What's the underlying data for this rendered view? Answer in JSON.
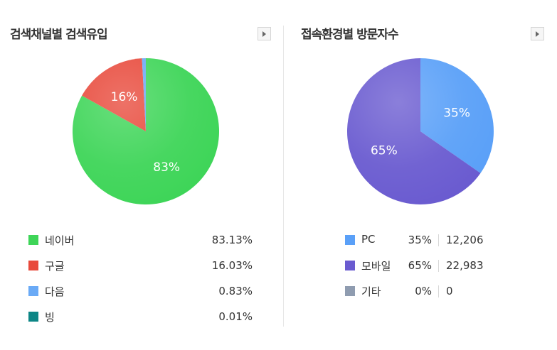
{
  "left": {
    "title": "검색채널별 검색유입",
    "legend": [
      {
        "label": "네이버",
        "value": "83.13%",
        "color": "#3ed558"
      },
      {
        "label": "구글",
        "value": "16.03%",
        "color": "#e84a3c"
      },
      {
        "label": "다음",
        "value": "0.83%",
        "color": "#6aaaf6"
      },
      {
        "label": "빙",
        "value": "0.01%",
        "color": "#0d8686"
      }
    ]
  },
  "right": {
    "title": "접속환경별 방문자수",
    "legend": [
      {
        "label": "PC",
        "pct": "35%",
        "count": "12,206",
        "color": "#5aa0f8"
      },
      {
        "label": "모바일",
        "pct": "65%",
        "count": "22,983",
        "color": "#6a5bd0"
      },
      {
        "label": "기타",
        "pct": "0%",
        "count": "0",
        "color": "#8f9cb0"
      }
    ]
  },
  "chart_data": [
    {
      "type": "pie",
      "title": "검색채널별 검색유입",
      "categories": [
        "네이버",
        "구글",
        "다음",
        "빙"
      ],
      "values": [
        83.13,
        16.03,
        0.83,
        0.01
      ],
      "labels": [
        "83%",
        "16%",
        "",
        ""
      ],
      "colors": [
        "#3ed558",
        "#e84a3c",
        "#6aaaf6",
        "#0d8686"
      ]
    },
    {
      "type": "pie",
      "title": "접속환경별 방문자수",
      "categories": [
        "PC",
        "모바일",
        "기타"
      ],
      "values": [
        12206,
        22983,
        0
      ],
      "labels": [
        "35%",
        "65%",
        ""
      ],
      "colors": [
        "#5aa0f8",
        "#6a5bd0",
        "#8f9cb0"
      ]
    }
  ]
}
